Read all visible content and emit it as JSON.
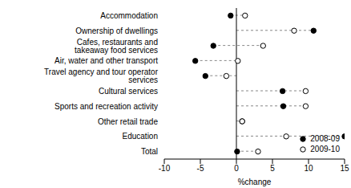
{
  "chart_data": {
    "type": "dot",
    "orientation": "horizontal",
    "x_label": "%change",
    "categories": [
      "Accommodation",
      "Ownership of dwellings",
      "Cafes, restaurants and takeaway food services",
      "Air, water and other transport",
      "Travel agency and tour operator services",
      "Cultural services",
      "Sports and recreation activity",
      "Other retail trade",
      "Education",
      "Total"
    ],
    "series": [
      {
        "name": "2008-09",
        "color": "#000000",
        "marker": "filled",
        "values": [
          -0.8,
          10.7,
          -3.2,
          -5.7,
          -4.3,
          6.4,
          6.5,
          0.8,
          15.0,
          0.1
        ]
      },
      {
        "name": "2009-10",
        "color": "#000000",
        "marker": "open",
        "values": [
          1.2,
          8.0,
          3.7,
          0.2,
          -1.4,
          9.6,
          9.6,
          0.8,
          6.9,
          3.0
        ]
      }
    ],
    "xlim": [
      -10,
      15
    ],
    "xticks": [
      -10,
      -5,
      0,
      5,
      10,
      15
    ],
    "legend": "lower right",
    "grid": false
  }
}
